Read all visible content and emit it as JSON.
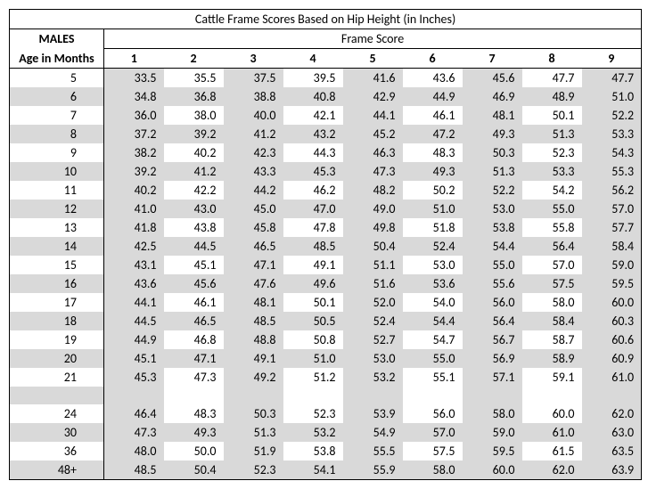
{
  "title": "Cattle Frame Scores Based on Hip Height (in Inches)",
  "males_label": "MALES",
  "frame_score_label": "Frame Score",
  "age_label": "Age in Months",
  "frame_scores": [
    "1",
    "2",
    "3",
    "4",
    "5",
    "6",
    "7",
    "8",
    "9"
  ],
  "colors": {
    "shade": "#d9d9d9",
    "plain": "#ffffff",
    "text": "#000000",
    "border": "#000000"
  },
  "col_shaded": [
    false,
    true,
    false,
    true,
    false,
    true,
    false,
    true,
    false,
    true
  ],
  "rows": [
    {
      "age": "5",
      "vals": [
        "33.5",
        "35.5",
        "37.5",
        "39.5",
        "41.6",
        "43.6",
        "45.6",
        "47.7",
        "47.7"
      ],
      "row_shaded": false,
      "blank": false
    },
    {
      "age": "6",
      "vals": [
        "34.8",
        "36.8",
        "38.8",
        "40.8",
        "42.9",
        "44.9",
        "46.9",
        "48.9",
        "51.0"
      ],
      "row_shaded": true,
      "blank": false
    },
    {
      "age": "7",
      "vals": [
        "36.0",
        "38.0",
        "40.0",
        "42.1",
        "44.1",
        "46.1",
        "48.1",
        "50.1",
        "52.2"
      ],
      "row_shaded": false,
      "blank": false
    },
    {
      "age": "8",
      "vals": [
        "37.2",
        "39.2",
        "41.2",
        "43.2",
        "45.2",
        "47.2",
        "49.3",
        "51.3",
        "53.3"
      ],
      "row_shaded": true,
      "blank": false
    },
    {
      "age": "9",
      "vals": [
        "38.2",
        "40.2",
        "42.3",
        "44.3",
        "46.3",
        "48.3",
        "50.3",
        "52.3",
        "54.3"
      ],
      "row_shaded": false,
      "blank": false
    },
    {
      "age": "10",
      "vals": [
        "39.2",
        "41.2",
        "43.3",
        "45.3",
        "47.3",
        "49.3",
        "51.3",
        "53.3",
        "55.3"
      ],
      "row_shaded": true,
      "blank": false
    },
    {
      "age": "11",
      "vals": [
        "40.2",
        "42.2",
        "44.2",
        "46.2",
        "48.2",
        "50.2",
        "52.2",
        "54.2",
        "56.2"
      ],
      "row_shaded": false,
      "blank": false
    },
    {
      "age": "12",
      "vals": [
        "41.0",
        "43.0",
        "45.0",
        "47.0",
        "49.0",
        "51.0",
        "53.0",
        "55.0",
        "57.0"
      ],
      "row_shaded": true,
      "blank": false
    },
    {
      "age": "13",
      "vals": [
        "41.8",
        "43.8",
        "45.8",
        "47.8",
        "49.8",
        "51.8",
        "53.8",
        "55.8",
        "57.7"
      ],
      "row_shaded": false,
      "blank": false
    },
    {
      "age": "14",
      "vals": [
        "42.5",
        "44.5",
        "46.5",
        "48.5",
        "50.4",
        "52.4",
        "54.4",
        "56.4",
        "58.4"
      ],
      "row_shaded": true,
      "blank": false
    },
    {
      "age": "15",
      "vals": [
        "43.1",
        "45.1",
        "47.1",
        "49.1",
        "51.1",
        "53.0",
        "55.0",
        "57.0",
        "59.0"
      ],
      "row_shaded": false,
      "blank": false
    },
    {
      "age": "16",
      "vals": [
        "43.6",
        "45.6",
        "47.6",
        "49.6",
        "51.6",
        "53.6",
        "55.6",
        "57.5",
        "59.5"
      ],
      "row_shaded": true,
      "blank": false
    },
    {
      "age": "17",
      "vals": [
        "44.1",
        "46.1",
        "48.1",
        "50.1",
        "52.0",
        "54.0",
        "56.0",
        "58.0",
        "60.0"
      ],
      "row_shaded": false,
      "blank": false
    },
    {
      "age": "18",
      "vals": [
        "44.5",
        "46.5",
        "48.5",
        "50.5",
        "52.4",
        "54.4",
        "56.4",
        "58.4",
        "60.3"
      ],
      "row_shaded": true,
      "blank": false
    },
    {
      "age": "19",
      "vals": [
        "44.9",
        "46.8",
        "48.8",
        "50.8",
        "52.7",
        "54.7",
        "56.7",
        "58.7",
        "60.6"
      ],
      "row_shaded": false,
      "blank": false
    },
    {
      "age": "20",
      "vals": [
        "45.1",
        "47.1",
        "49.1",
        "51.0",
        "53.0",
        "55.0",
        "56.9",
        "58.9",
        "60.9"
      ],
      "row_shaded": true,
      "blank": false
    },
    {
      "age": "21",
      "vals": [
        "45.3",
        "47.3",
        "49.2",
        "51.2",
        "53.2",
        "55.1",
        "57.1",
        "59.1",
        "61.0"
      ],
      "row_shaded": false,
      "blank": false
    },
    {
      "age": "",
      "vals": [
        "",
        "",
        "",
        "",
        "",
        "",
        "",
        "",
        ""
      ],
      "row_shaded": true,
      "blank": true
    },
    {
      "age": "24",
      "vals": [
        "46.4",
        "48.3",
        "50.3",
        "52.3",
        "53.9",
        "56.0",
        "58.0",
        "60.0",
        "62.0"
      ],
      "row_shaded": false,
      "blank": false
    },
    {
      "age": "30",
      "vals": [
        "47.3",
        "49.3",
        "51.3",
        "53.2",
        "54.9",
        "57.0",
        "59.0",
        "61.0",
        "63.0"
      ],
      "row_shaded": true,
      "blank": false
    },
    {
      "age": "36",
      "vals": [
        "48.0",
        "50.0",
        "51.9",
        "53.8",
        "55.5",
        "57.5",
        "59.5",
        "61.5",
        "63.5"
      ],
      "row_shaded": false,
      "blank": false
    },
    {
      "age": "48+",
      "vals": [
        "48.5",
        "50.4",
        "52.3",
        "54.1",
        "55.9",
        "58.0",
        "60.0",
        "62.0",
        "63.9"
      ],
      "row_shaded": true,
      "blank": false
    }
  ]
}
